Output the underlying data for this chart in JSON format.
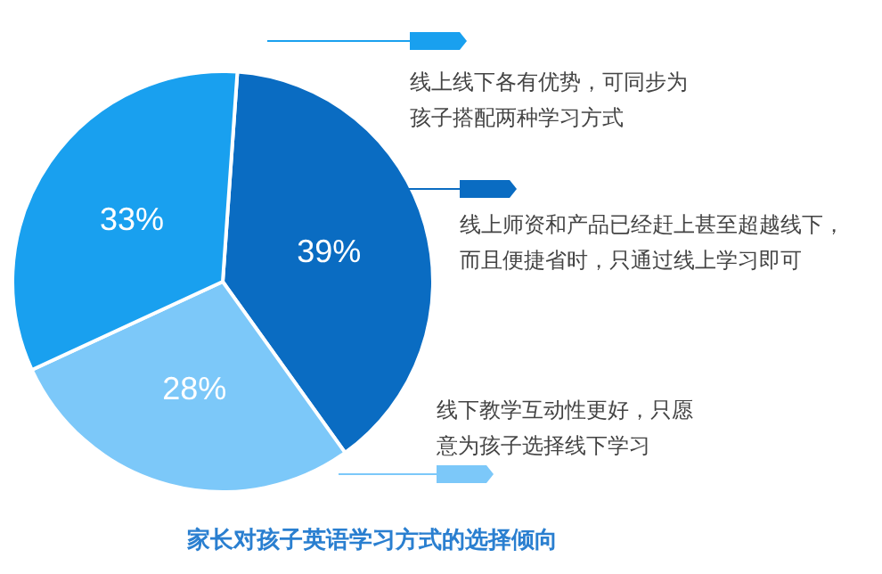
{
  "chart_data": {
    "type": "pie",
    "title": "家长对孩子英语学习方式的选择倾向",
    "categories": [
      "线上师资和产品已经赶上甚至超越线下，而且便捷省时，只通过线上学习即可",
      "线下教学互动性更好，只愿意为孩子选择线下学习",
      "线上线下各有优势，可同步为孩子搭配两种学习方式"
    ],
    "values": [
      39,
      28,
      33
    ],
    "colors": [
      "#0a6cc2",
      "#7cc8f9",
      "#19a0ef"
    ],
    "value_labels": [
      "39%",
      "28%",
      "33%"
    ],
    "legend": "right"
  }
}
